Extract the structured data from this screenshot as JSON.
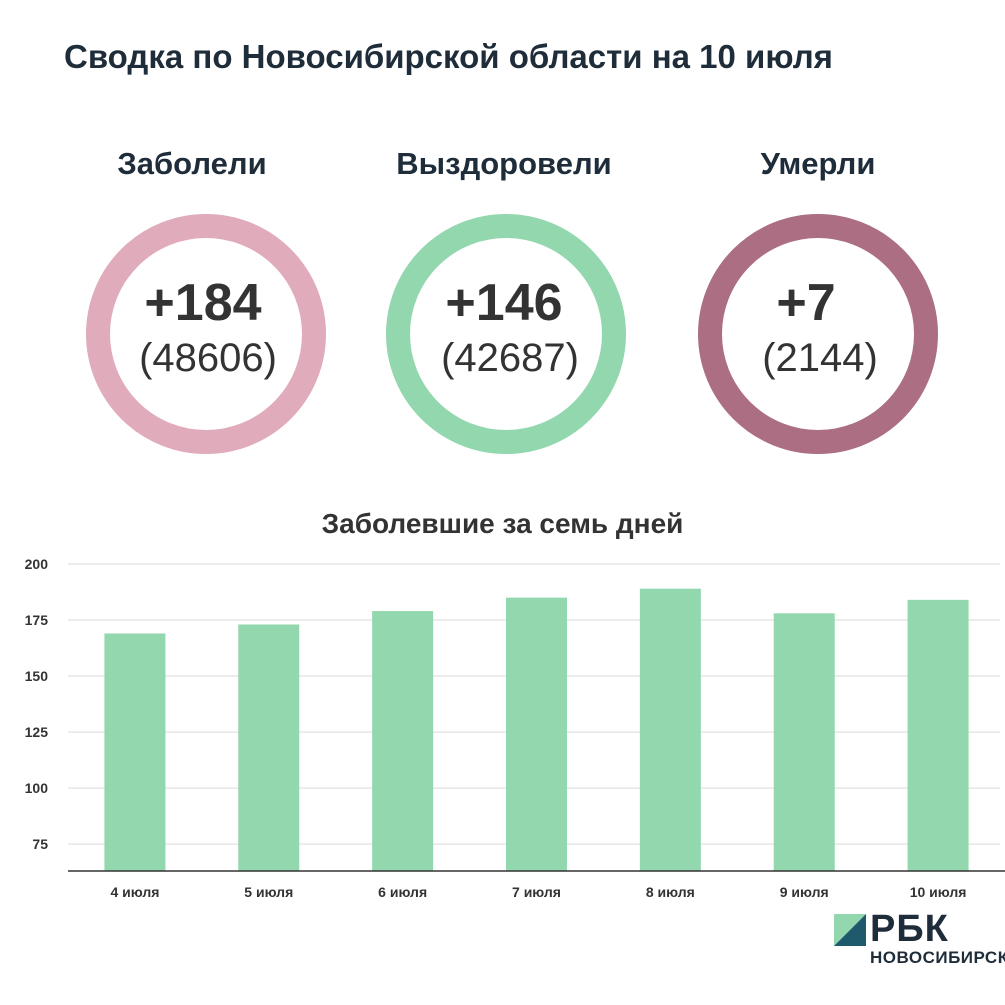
{
  "title": "Сводка по Новосибирской области на 10 июля",
  "stats": [
    {
      "label": "Заболели",
      "delta": "+184",
      "total": "(48606)",
      "color": "#e0abbb"
    },
    {
      "label": "Выздоровели",
      "delta": "+146",
      "total": "(42687)",
      "color": "#93d7ae"
    },
    {
      "label": "Умерли",
      "delta": "+7",
      "total": "(2144)",
      "color": "#ab6e82"
    }
  ],
  "logo": {
    "text": "РБК",
    "subtitle": "НОВОСИБИРСК",
    "colors": [
      "#93d7ae",
      "#1e5a6b"
    ]
  },
  "chart_data": {
    "type": "bar",
    "title": "Заболевшие за семь дней",
    "categories": [
      "4 июля",
      "5 июля",
      "6 июля",
      "7 июля",
      "8 июля",
      "9 июля",
      "10 июля"
    ],
    "values": [
      169,
      173,
      179,
      185,
      189,
      178,
      184
    ],
    "yticks": [
      75,
      100,
      125,
      150,
      175,
      200
    ],
    "ylim": [
      63,
      200
    ],
    "grid": true,
    "bar_color": "#93d7ae"
  }
}
